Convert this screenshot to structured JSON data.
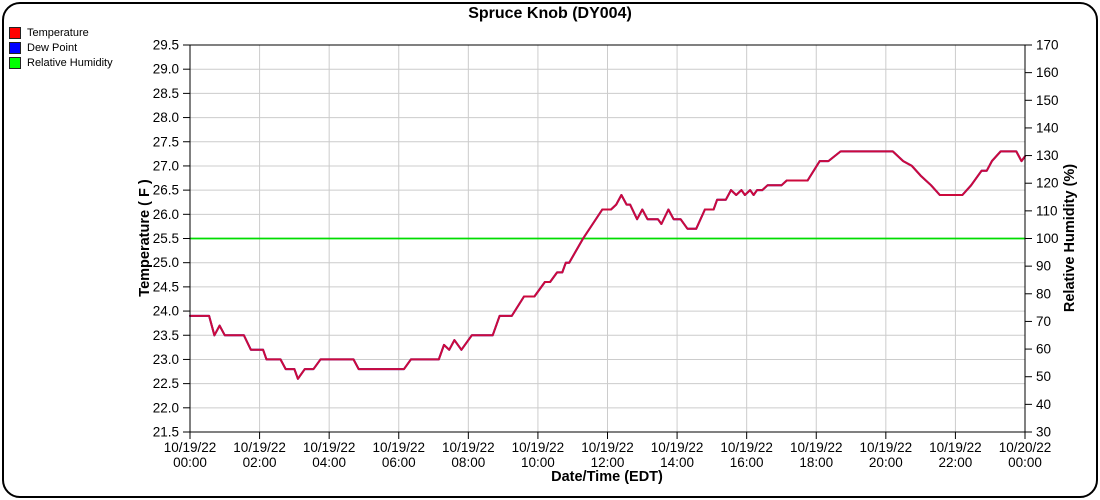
{
  "title": "Spruce Knob (DY004)",
  "legend": {
    "items": [
      {
        "label": "Temperature",
        "color": "#ff0000"
      },
      {
        "label": "Dew Point",
        "color": "#0000ff"
      },
      {
        "label": "Relative Humidity",
        "color": "#00ff00"
      }
    ]
  },
  "chart_data": {
    "type": "line",
    "title": "Spruce Knob (DY004)",
    "xlabel": "Date/Time (EDT)",
    "grid": true,
    "legend_position": "top-left",
    "y_left": {
      "label": "Temperature ( F )",
      "min": 21.5,
      "max": 29.5,
      "step": 0.5
    },
    "y_right": {
      "label": "Relative Humidity (%)",
      "min": 30,
      "max": 170,
      "step": 10
    },
    "x_axis": {
      "min_hours": 0,
      "max_hours": 24,
      "tick_step_hours": 2,
      "ticks": [
        {
          "date": "10/19/22",
          "time": "00:00"
        },
        {
          "date": "10/19/22",
          "time": "02:00"
        },
        {
          "date": "10/19/22",
          "time": "04:00"
        },
        {
          "date": "10/19/22",
          "time": "06:00"
        },
        {
          "date": "10/19/22",
          "time": "08:00"
        },
        {
          "date": "10/19/22",
          "time": "10:00"
        },
        {
          "date": "10/19/22",
          "time": "12:00"
        },
        {
          "date": "10/19/22",
          "time": "14:00"
        },
        {
          "date": "10/19/22",
          "time": "16:00"
        },
        {
          "date": "10/19/22",
          "time": "18:00"
        },
        {
          "date": "10/19/22",
          "time": "20:00"
        },
        {
          "date": "10/19/22",
          "time": "22:00"
        },
        {
          "date": "10/20/22",
          "time": "00:00"
        }
      ]
    },
    "series": [
      {
        "name": "Temperature",
        "axis": "left",
        "color": "#cc0a3c",
        "width": 2,
        "points": [
          [
            0,
            23.9
          ],
          [
            0.55,
            23.9
          ],
          [
            0.7,
            23.5
          ],
          [
            0.85,
            23.7
          ],
          [
            1.0,
            23.5
          ],
          [
            1.55,
            23.5
          ],
          [
            1.75,
            23.2
          ],
          [
            2.1,
            23.2
          ],
          [
            2.2,
            23.0
          ],
          [
            2.6,
            23.0
          ],
          [
            2.75,
            22.8
          ],
          [
            3.0,
            22.8
          ],
          [
            3.1,
            22.6
          ],
          [
            3.3,
            22.8
          ],
          [
            3.55,
            22.8
          ],
          [
            3.75,
            23.0
          ],
          [
            4.7,
            23.0
          ],
          [
            4.85,
            22.8
          ],
          [
            6.15,
            22.8
          ],
          [
            6.35,
            23.0
          ],
          [
            7.15,
            23.0
          ],
          [
            7.3,
            23.3
          ],
          [
            7.45,
            23.2
          ],
          [
            7.6,
            23.4
          ],
          [
            7.8,
            23.2
          ],
          [
            8.1,
            23.5
          ],
          [
            8.7,
            23.5
          ],
          [
            8.9,
            23.9
          ],
          [
            9.25,
            23.9
          ],
          [
            9.6,
            24.3
          ],
          [
            9.9,
            24.3
          ],
          [
            10.2,
            24.6
          ],
          [
            10.35,
            24.6
          ],
          [
            10.55,
            24.8
          ],
          [
            10.7,
            24.8
          ],
          [
            10.8,
            25.0
          ],
          [
            10.9,
            25.0
          ],
          [
            11.3,
            25.5
          ],
          [
            11.85,
            26.1
          ],
          [
            12.1,
            26.1
          ],
          [
            12.25,
            26.2
          ],
          [
            12.4,
            26.4
          ],
          [
            12.55,
            26.2
          ],
          [
            12.65,
            26.2
          ],
          [
            12.85,
            25.9
          ],
          [
            13.0,
            26.1
          ],
          [
            13.15,
            25.9
          ],
          [
            13.45,
            25.9
          ],
          [
            13.55,
            25.8
          ],
          [
            13.75,
            26.1
          ],
          [
            13.9,
            25.9
          ],
          [
            14.1,
            25.9
          ],
          [
            14.3,
            25.7
          ],
          [
            14.55,
            25.7
          ],
          [
            14.8,
            26.1
          ],
          [
            15.05,
            26.1
          ],
          [
            15.15,
            26.3
          ],
          [
            15.4,
            26.3
          ],
          [
            15.55,
            26.5
          ],
          [
            15.7,
            26.4
          ],
          [
            15.85,
            26.5
          ],
          [
            15.95,
            26.4
          ],
          [
            16.1,
            26.5
          ],
          [
            16.2,
            26.4
          ],
          [
            16.3,
            26.5
          ],
          [
            16.45,
            26.5
          ],
          [
            16.6,
            26.6
          ],
          [
            17.0,
            26.6
          ],
          [
            17.15,
            26.7
          ],
          [
            17.75,
            26.7
          ],
          [
            18.1,
            27.1
          ],
          [
            18.35,
            27.1
          ],
          [
            18.7,
            27.3
          ],
          [
            20.2,
            27.3
          ],
          [
            20.5,
            27.1
          ],
          [
            20.75,
            27.0
          ],
          [
            21.0,
            26.8
          ],
          [
            21.3,
            26.6
          ],
          [
            21.55,
            26.4
          ],
          [
            22.2,
            26.4
          ],
          [
            22.45,
            26.6
          ],
          [
            22.75,
            26.9
          ],
          [
            22.9,
            26.9
          ],
          [
            23.05,
            27.1
          ],
          [
            23.3,
            27.3
          ],
          [
            23.75,
            27.3
          ],
          [
            23.9,
            27.1
          ],
          [
            24.0,
            27.2
          ]
        ]
      },
      {
        "name": "Dew Point",
        "axis": "left",
        "color": "#0000cc",
        "width": 2,
        "points_same_as": "Temperature",
        "note": "Dew Point coincides with Temperature (RH = 100%) and is hidden beneath the red line"
      },
      {
        "name": "Relative Humidity",
        "axis": "right",
        "color": "#00dd00",
        "width": 1.8,
        "points": [
          [
            0,
            100
          ],
          [
            24,
            100
          ]
        ]
      }
    ]
  }
}
